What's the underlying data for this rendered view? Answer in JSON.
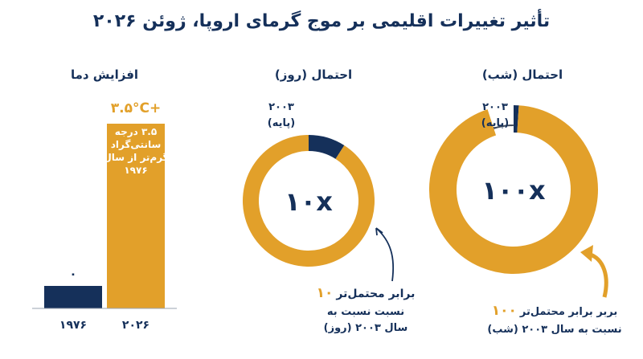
{
  "title": "تأثیر تغییرات اقلیمی بر موج گرمای اروپا، ژوئن ۲۰۲۶",
  "colors": {
    "navy": "#15305a",
    "gold": "#e2a02a",
    "thin": "#3f4a5c",
    "text": "#15305a",
    "white": "#ffffff"
  },
  "chart_data": [
    {
      "type": "bar",
      "title": "افزایش دما",
      "categories": [
        "۱۹۷۶",
        "۲۰۲۶"
      ],
      "values": [
        0,
        3.5
      ],
      "value_labels": [
        "۰",
        "+۳.۵°C"
      ],
      "annotation_lines": [
        "۳.۵ درجه",
        "سانتی‌گراد",
        "گرم‌تر از سال",
        "۱۹۷۶"
      ],
      "bar_colors": [
        "#15305a",
        "#e2a02a"
      ]
    },
    {
      "type": "pie",
      "title": "احتمال (روز)",
      "center_label": "۱۰x",
      "slices": [
        {
          "label": "۲۰۰۳ (پایه)",
          "value": 1
        },
        {
          "label": "۱۰ برابر محتمل‌تر",
          "value": 10
        }
      ],
      "base_label_lines": [
        "۲۰۰۳",
        "(پایه)"
      ],
      "note_number": "۱۰",
      "note_lines": [
        "برابر محتمل‌تر",
        "نسبت نسبت به",
        "سال ۲۰۰۳ (روز)"
      ]
    },
    {
      "type": "pie",
      "title": "احتمال (شب)",
      "center_label": "۱۰۰x",
      "slices": [
        {
          "label": "۲۰۰۳ (پایه)",
          "value": 1
        },
        {
          "label": "۱۰۰ برابر محتمل‌تر",
          "value": 100
        }
      ],
      "base_label_lines": [
        "۲۰۰۳",
        "(پایه)"
      ],
      "note_number": "۱۰۰",
      "note_lines": [
        "بربر برابر محتمل‌تر",
        "نسبت به سال ۲۰۰۳ (شب)"
      ]
    }
  ]
}
